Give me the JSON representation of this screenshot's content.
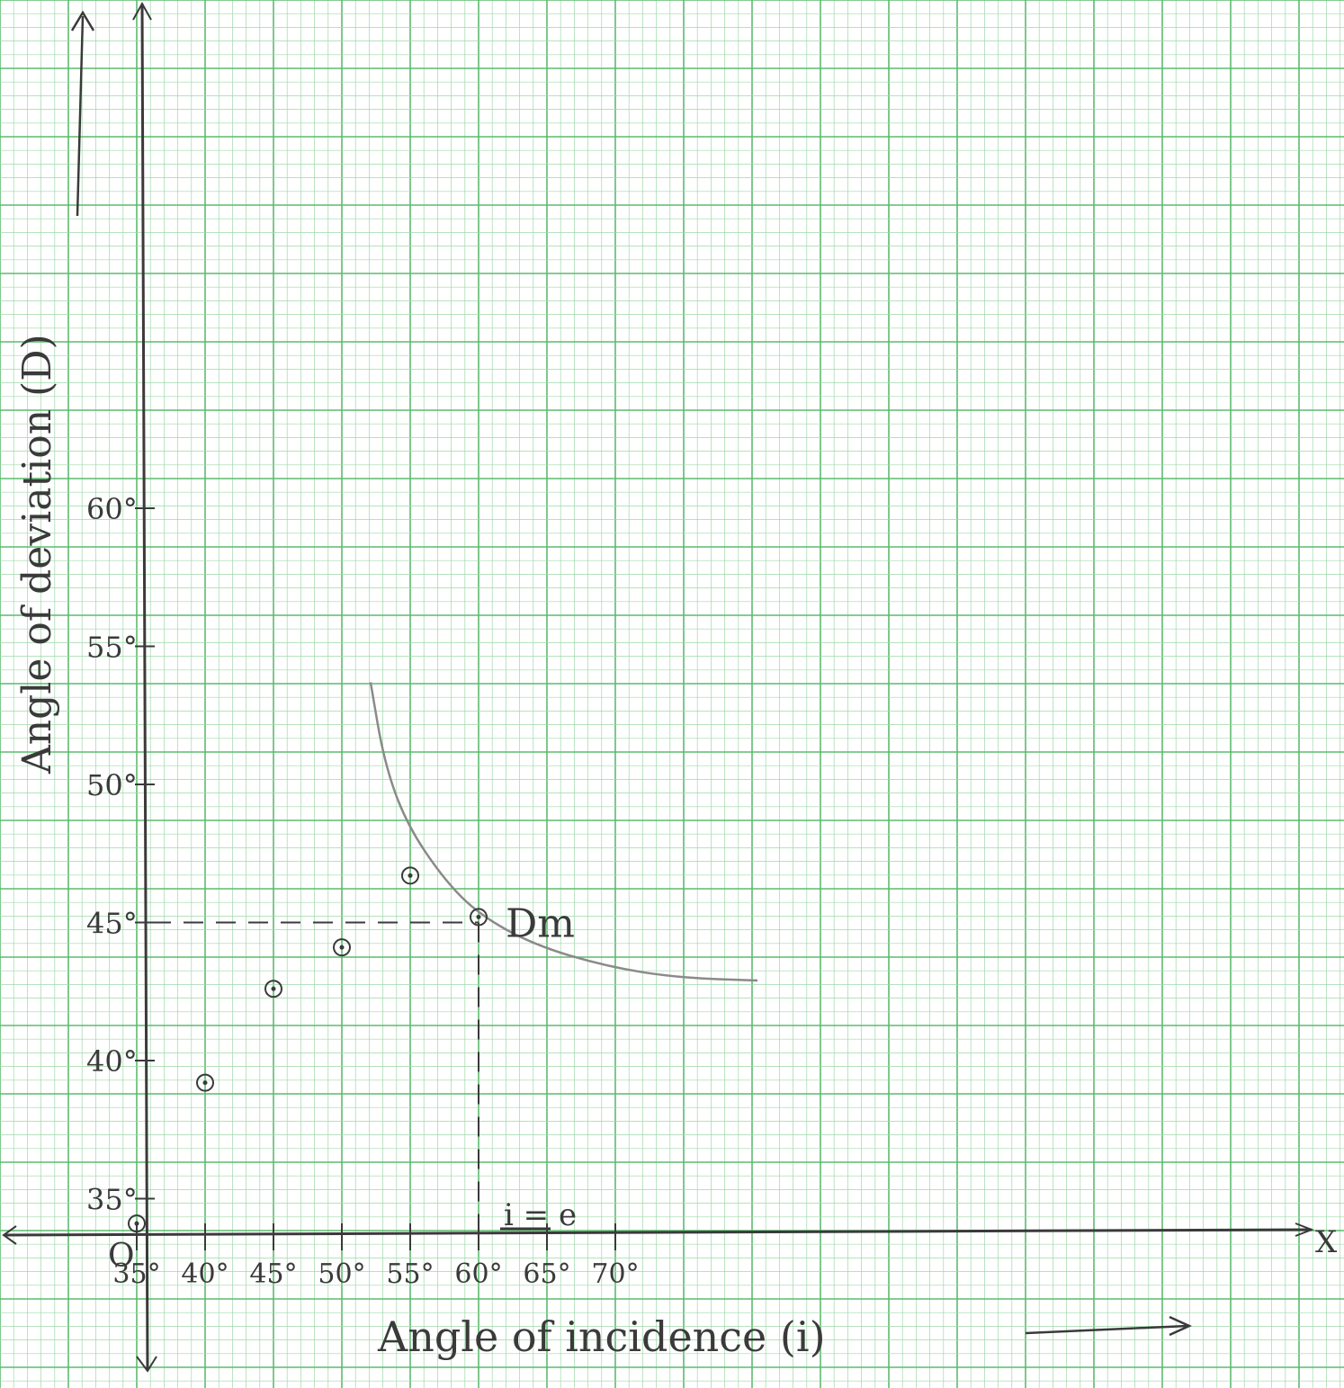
{
  "chart_data": {
    "type": "scatter",
    "xlabel": "Angle of incidence (i)",
    "ylabel": "Angle of deviation (D)",
    "xlim": [
      25,
      88
    ],
    "ylim": [
      31.5,
      64.5
    ],
    "x_ticks": [
      {
        "value": 35,
        "label": "35°"
      },
      {
        "value": 40,
        "label": "40°"
      },
      {
        "value": 45,
        "label": "45°"
      },
      {
        "value": 50,
        "label": "50°"
      },
      {
        "value": 55,
        "label": "55°"
      },
      {
        "value": 60,
        "label": "60°"
      },
      {
        "value": 65,
        "label": "65°"
      },
      {
        "value": 70,
        "label": "70°"
      }
    ],
    "y_ticks": [
      {
        "value": 35,
        "label": "35°"
      },
      {
        "value": 40,
        "label": "40°"
      },
      {
        "value": 45,
        "label": "45°"
      },
      {
        "value": 50,
        "label": "50°"
      },
      {
        "value": 55,
        "label": "55°"
      },
      {
        "value": 60,
        "label": "60°"
      }
    ],
    "points": [
      {
        "x": 35,
        "y": 34.1
      },
      {
        "x": 40,
        "y": 39.2
      },
      {
        "x": 45,
        "y": 42.6
      },
      {
        "x": 50,
        "y": 44.1
      },
      {
        "x": 55,
        "y": 46.7
      },
      {
        "x": 60,
        "y": 45.2
      }
    ],
    "curve": [
      {
        "x": 52.1,
        "y": 53.7
      },
      {
        "x": 53.1,
        "y": 50.8
      },
      {
        "x": 54.7,
        "y": 48.6
      },
      {
        "x": 57.4,
        "y": 46.6
      },
      {
        "x": 60.0,
        "y": 45.3
      },
      {
        "x": 64.0,
        "y": 44.2
      },
      {
        "x": 69.4,
        "y": 43.4
      },
      {
        "x": 74.6,
        "y": 43.0
      },
      {
        "x": 80.4,
        "y": 42.9
      }
    ],
    "minimum": {
      "x": 60,
      "y": 45
    },
    "annotations": {
      "minimum_label": "Dm",
      "condition_label": "i = e"
    },
    "origin_label": "O",
    "x_axis_letter": "X",
    "grid": true
  },
  "colors": {
    "paper": "#ffffff",
    "grid_minor": "#9fd8a8",
    "grid_major": "#5dbb6f",
    "ink": "#3a3a3a",
    "curve": "#8a8a8a"
  }
}
